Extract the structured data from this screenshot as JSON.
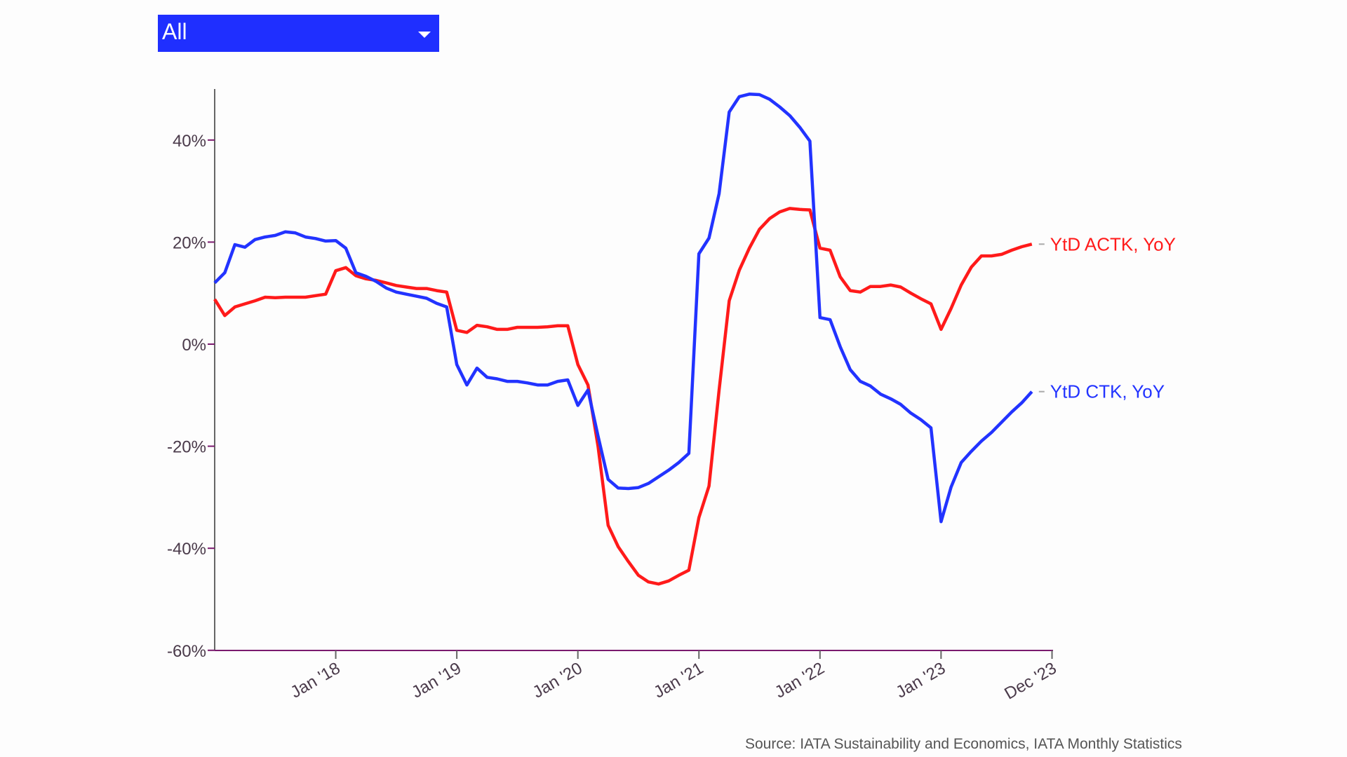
{
  "filter": {
    "selected": "All"
  },
  "source": "Source: IATA Sustainability and Economics, IATA Monthly Statistics",
  "chart_data": {
    "type": "line",
    "title": "",
    "xlabel": "",
    "ylabel": "",
    "x_start": "Jan 2017",
    "x_unit": "month",
    "xlim_months": [
      0,
      83
    ],
    "ylim": [
      -60,
      50
    ],
    "y_ticks": [
      {
        "value": 40,
        "label": "40%"
      },
      {
        "value": 20,
        "label": "20%"
      },
      {
        "value": 0,
        "label": "0%"
      },
      {
        "value": -20,
        "label": "-20%"
      },
      {
        "value": -40,
        "label": "-40%"
      },
      {
        "value": -60,
        "label": "-60%"
      }
    ],
    "x_ticks": [
      {
        "month": 12,
        "label": "Jan '18"
      },
      {
        "month": 24,
        "label": "Jan '19"
      },
      {
        "month": 36,
        "label": "Jan '20"
      },
      {
        "month": 48,
        "label": "Jan '21"
      },
      {
        "month": 60,
        "label": "Jan '22"
      },
      {
        "month": 72,
        "label": "Jan '23"
      },
      {
        "month": 83,
        "label": "Dec '23"
      }
    ],
    "grid": false,
    "legend_placement": "line-end labels, right",
    "series": [
      {
        "name": "YtD ACTK, YoY",
        "color": "#ff1a1a",
        "values": [
          8.8,
          5.6,
          7.3,
          7.9,
          8.5,
          9.2,
          9.1,
          9.2,
          9.2,
          9.2,
          9.5,
          9.8,
          14.4,
          15,
          13.4,
          12.8,
          12.5,
          12,
          11.5,
          11.2,
          10.9,
          10.9,
          10.5,
          10.2,
          2.7,
          2.3,
          3.7,
          3.4,
          2.9,
          2.9,
          3.3,
          3.3,
          3.3,
          3.4,
          3.6,
          3.6,
          -4,
          -8,
          -20,
          -35.5,
          -39.7,
          -42.6,
          -45.3,
          -46.6,
          -47,
          -46.4,
          -45.3,
          -44.3,
          -34,
          -27.8,
          -9,
          8.5,
          14.5,
          18.8,
          22.5,
          24.6,
          25.9,
          26.6,
          26.4,
          26.3,
          18.8,
          18.4,
          13.2,
          10.5,
          10.2,
          11.3,
          11.3,
          11.6,
          11.2,
          10,
          8.9,
          7.9,
          2.9,
          7,
          11.6,
          15.1,
          17.3,
          17.3,
          17.6,
          18.4,
          19.1,
          19.6
        ]
      },
      {
        "name": "YtD CTK, YoY",
        "color": "#2233ff",
        "values": [
          12,
          14,
          19.5,
          19,
          20.5,
          21,
          21.3,
          22,
          21.8,
          21,
          20.7,
          20.2,
          20.3,
          18.8,
          14,
          13.3,
          12.3,
          11,
          10.2,
          9.8,
          9.4,
          9,
          8,
          7.3,
          -4,
          -8,
          -4.7,
          -6.5,
          -6.8,
          -7.3,
          -7.3,
          -7.6,
          -8,
          -8,
          -7.3,
          -7,
          -12,
          -9,
          -18,
          -26.5,
          -28.2,
          -28.3,
          -28.1,
          -27.3,
          -26,
          -24.7,
          -23.2,
          -21.4,
          17.7,
          20.8,
          29.5,
          45.5,
          48.5,
          49,
          48.9,
          48,
          46.5,
          44.8,
          42.5,
          39.8,
          5.2,
          4.8,
          -0.5,
          -5,
          -7.3,
          -8.2,
          -9.8,
          -10.7,
          -11.8,
          -13.5,
          -14.8,
          -16.4,
          -34.8,
          -28,
          -23.2,
          -21,
          -19,
          -17.3,
          -15.3,
          -13.3,
          -11.5,
          -9.3
        ]
      }
    ]
  }
}
